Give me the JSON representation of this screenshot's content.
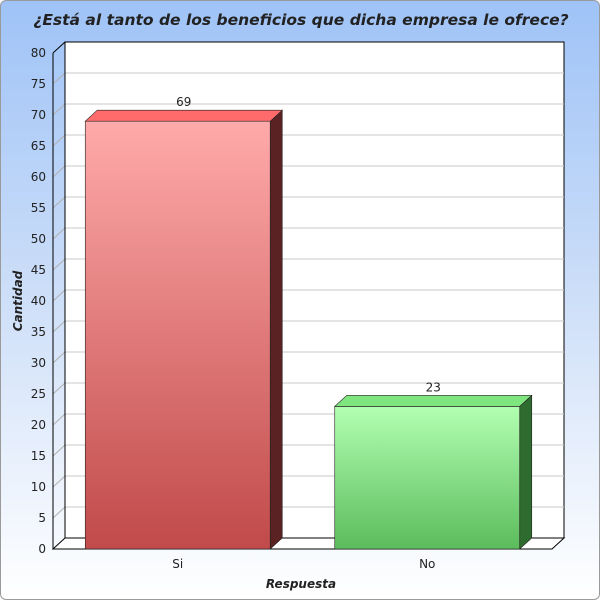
{
  "chart_data": {
    "type": "bar",
    "title": "¿Está al tanto de los beneficios que dicha empresa le ofrece?",
    "xlabel": "Respuesta",
    "ylabel": "Cantidad",
    "categories": [
      "Si",
      "No"
    ],
    "values": [
      69,
      23
    ],
    "data_labels": [
      "69",
      "23"
    ],
    "ylim": [
      0,
      80
    ],
    "yticks": [
      "0",
      "5",
      "10",
      "15",
      "20",
      "25",
      "30",
      "35",
      "40",
      "45",
      "50",
      "55",
      "60",
      "65",
      "70",
      "75",
      "80"
    ],
    "grid": true,
    "bar_colors": [
      "#e05a5a",
      "#7ee07e"
    ]
  }
}
